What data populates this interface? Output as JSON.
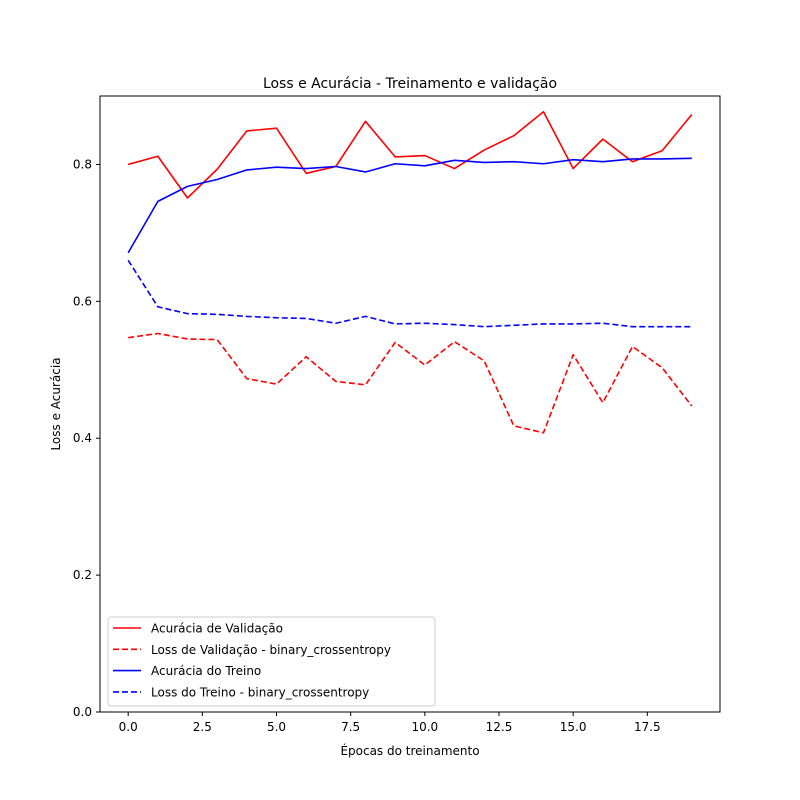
{
  "chart_data": {
    "type": "line",
    "title": "Loss e Acurácia - Treinamento e validação",
    "xlabel": "Épocas do treinamento",
    "ylabel": "Loss e Acurácia",
    "xlim": [
      -0.95,
      19.95
    ],
    "ylim": [
      0.0,
      0.9
    ],
    "xticks": [
      0.0,
      2.5,
      5.0,
      7.5,
      10.0,
      12.5,
      15.0,
      17.5
    ],
    "xtick_labels": [
      "0.0",
      "2.5",
      "5.0",
      "7.5",
      "10.0",
      "12.5",
      "15.0",
      "17.5"
    ],
    "yticks": [
      0.0,
      0.2,
      0.4,
      0.6,
      0.8
    ],
    "ytick_labels": [
      "0.0",
      "0.2",
      "0.4",
      "0.6",
      "0.8"
    ],
    "grid": false,
    "legend_position": "lower-left",
    "x": [
      0,
      1,
      2,
      3,
      4,
      5,
      6,
      7,
      8,
      9,
      10,
      11,
      12,
      13,
      14,
      15,
      16,
      17,
      18,
      19
    ],
    "series": [
      {
        "name": "Acurácia de Validação",
        "color": "#ff0000",
        "linestyle": "solid",
        "values": [
          0.8,
          0.812,
          0.751,
          0.793,
          0.849,
          0.853,
          0.787,
          0.797,
          0.863,
          0.811,
          0.813,
          0.794,
          0.821,
          0.842,
          0.877,
          0.794,
          0.837,
          0.804,
          0.82,
          0.873
        ]
      },
      {
        "name": "Loss de Validação - binary_crossentropy",
        "color": "#ff0000",
        "linestyle": "dashed",
        "values": [
          0.547,
          0.553,
          0.545,
          0.544,
          0.487,
          0.479,
          0.519,
          0.483,
          0.478,
          0.54,
          0.507,
          0.541,
          0.513,
          0.418,
          0.408,
          0.522,
          0.452,
          0.534,
          0.503,
          0.447
        ]
      },
      {
        "name": "Acurácia do Treino",
        "color": "#0000ff",
        "linestyle": "solid",
        "values": [
          0.671,
          0.746,
          0.768,
          0.778,
          0.792,
          0.796,
          0.794,
          0.797,
          0.789,
          0.801,
          0.798,
          0.806,
          0.803,
          0.804,
          0.801,
          0.807,
          0.804,
          0.808,
          0.808,
          0.809
        ]
      },
      {
        "name": "Loss do Treino - binary_crossentropy",
        "color": "#0000ff",
        "linestyle": "dashed",
        "values": [
          0.66,
          0.592,
          0.582,
          0.581,
          0.578,
          0.576,
          0.575,
          0.568,
          0.578,
          0.567,
          0.568,
          0.566,
          0.563,
          0.565,
          0.567,
          0.567,
          0.568,
          0.563,
          0.563,
          0.563
        ]
      }
    ]
  }
}
